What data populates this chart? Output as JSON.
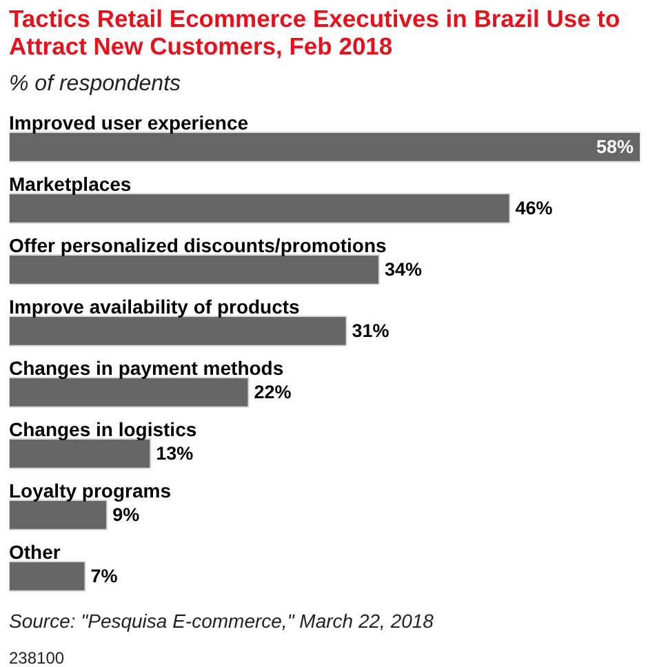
{
  "chart_data": {
    "type": "bar",
    "orientation": "horizontal",
    "title": "Tactics Retail Ecommerce Executives in Brazil Use to Attract New Customers, Feb 2018",
    "subtitle": "% of respondents",
    "categories": [
      "Improved user experience",
      "Marketplaces",
      "Offer personalized discounts/promotions",
      "Improve availability of products",
      "Changes in payment methods",
      "Changes in logistics",
      "Loyalty programs",
      "Other"
    ],
    "values": [
      58,
      46,
      34,
      31,
      22,
      13,
      9,
      7
    ],
    "value_labels": [
      "58%",
      "46%",
      "34%",
      "31%",
      "22%",
      "13%",
      "9%",
      "7%"
    ],
    "color": "#666666",
    "tick_labels": "y",
    "annotations": [
      "Source: \"Pesquisa E-commerce,\" March 22, 2018",
      "238100"
    ]
  }
}
